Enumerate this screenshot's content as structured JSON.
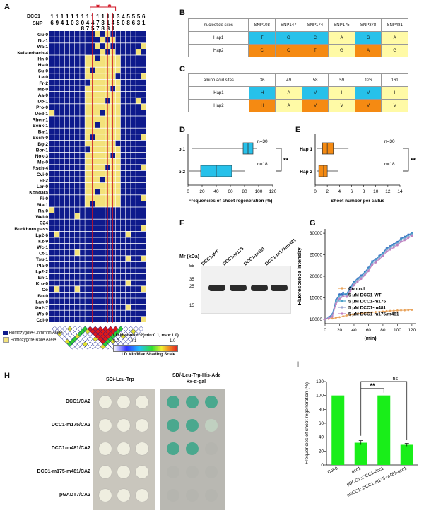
{
  "panels": {
    "A": "A",
    "B": "B",
    "C": "C",
    "D": "D",
    "E": "E",
    "F": "F",
    "G": "G",
    "H": "H",
    "I": "I"
  },
  "panelA": {
    "dcc1_label": "DCC1",
    "snp_label": "SNP",
    "snp_digits_row1": [
      "1",
      "1",
      "1",
      "1",
      "1",
      "1",
      "1",
      "1",
      "1",
      "1",
      "1",
      "1",
      "1",
      "3",
      "4",
      "5",
      "5",
      "5",
      "6"
    ],
    "snp_digits_row2": [
      "6",
      "9",
      "4",
      "1",
      "0",
      "3",
      "0",
      "4",
      "4",
      "7",
      "3",
      "1",
      "4",
      "5",
      "0",
      "8",
      "6",
      "3",
      "1"
    ],
    "snp_digits_row3": [
      "",
      "",
      "",
      "",
      "",
      "",
      "8",
      "7",
      "5",
      "7",
      "8",
      "8",
      "1",
      "",
      "",
      "",
      "",
      "",
      ""
    ],
    "accessions": [
      "Gu-0",
      "Nc-1",
      "Wa-1",
      "Kelsterbach-4",
      "Hn-0",
      "Hs-0",
      "Su-0",
      "Le-0",
      "Fr-2",
      "Mz-0",
      "Aa-0",
      "Db-1",
      "Pro-0",
      "Uod-1",
      "Rhen-1",
      "Benk-1",
      "Ba-1",
      "Bsch-0",
      "Bg-2",
      "Bor-1",
      "Nok-3",
      "Ms-0",
      "Rsch-4",
      "Cvi-0",
      "Ei-2",
      "Ler-0",
      "Kondara",
      "Fi-0",
      "Bla-1",
      "Ra-0",
      "Wei-0",
      "C24",
      "Buckhorn pass",
      "Lp2-6",
      "Kz-9",
      "Wc-1",
      "Ct-1",
      "Tsu-1",
      "Pla-0",
      "Lp2-2",
      "En-1",
      "Kro-0",
      "Co",
      "Bu-0",
      "Lan-0",
      "Pu2-7",
      "Ws-0",
      "Col-0"
    ],
    "legend_common": "Homozygote-Common Allele",
    "legend_rare": "Homozygote-Rare Allele",
    "ld_method": "LD Method:r^2(min:0.1, max:1.0)",
    "ld_scale_title": "LD Min/Max Shading Scale",
    "ld_ticks": [
      "0.0",
      "0.1",
      "1.0"
    ],
    "colors": {
      "common": "#0e1a8c",
      "rare": "#f3e27a",
      "grid": "#5060b0"
    }
  },
  "panelB": {
    "header": [
      "nucleotide sites",
      "SNP108",
      "SNP147",
      "SNP174",
      "SNP175",
      "SNP378",
      "SNP481"
    ],
    "rows": [
      {
        "name": "Hap1",
        "cells": [
          "T",
          "G",
          "C",
          "A",
          "G",
          "A"
        ]
      },
      {
        "name": "Hap2",
        "cells": [
          "C",
          "C",
          "T",
          "G",
          "A",
          "G"
        ]
      }
    ]
  },
  "panelC": {
    "header": [
      "amino acid sites",
      "36",
      "49",
      "58",
      "59",
      "126",
      "161"
    ],
    "rows": [
      {
        "name": "Hap1",
        "cells": [
          "H",
          "A",
          "V",
          "I",
          "V",
          "I"
        ]
      },
      {
        "name": "Hap2",
        "cells": [
          "H",
          "A",
          "V",
          "V",
          "V",
          "V"
        ]
      }
    ]
  },
  "panelD": {
    "xlabel": "Frequencies of shoot regeneration (%)",
    "ticks": [
      "0",
      "20",
      "40",
      "60",
      "80",
      "100",
      "120"
    ],
    "groups": [
      "Hap 1",
      "Hap 2"
    ],
    "n": [
      "n=30",
      "n=18"
    ],
    "sig": "**"
  },
  "panelE": {
    "xlabel": "Shoot number per callus",
    "ticks": [
      "0",
      "2",
      "4",
      "6",
      "8",
      "10",
      "12",
      "14"
    ],
    "groups": [
      "Hap 1",
      "Hap 2"
    ],
    "n": [
      "n=30",
      "n=18"
    ],
    "sig": "**"
  },
  "panelF": {
    "lanes": [
      "DCC1-WT",
      "DCC1-m175",
      "DCC1-m481",
      "DCC1-m175/m481"
    ],
    "mr_label": "Mr (kDa)",
    "markers": [
      "55",
      "35",
      "25",
      "15"
    ]
  },
  "panelG": {
    "ylabel": "Fluorescence intensity",
    "xlabel": "(min)",
    "yticks": [
      "10000",
      "15000",
      "20000",
      "25000",
      "30000"
    ],
    "xticks": [
      "0",
      "20",
      "40",
      "60",
      "80",
      "100",
      "120"
    ],
    "legend": [
      "Control",
      "5 μM DCC1-WT",
      "5 μM DCC1-m175",
      "5 μM DCC1-m481",
      "5 μM DCC1-m175/m481"
    ]
  },
  "panelH": {
    "col1": "SD/-Leu-Trp",
    "col2_line1": "SD/-Leu-Trp-His-Ade",
    "col2_line2": "+x-α-gal",
    "rows": [
      "DCC1/CA2",
      "DCC1-m175/CA2",
      "DCC1-m481/CA2",
      "DCC1-m175-m481/CA2",
      "pGADT7/CA2"
    ]
  },
  "chart_data": [
    {
      "type": "line",
      "x": [
        0,
        5,
        10,
        15,
        20,
        25,
        30,
        35,
        40,
        45,
        50,
        55,
        60,
        65,
        70,
        75,
        80,
        85,
        90,
        95,
        100,
        105,
        110,
        115,
        120
      ],
      "series": [
        {
          "name": "Control",
          "values": [
            10000,
            10100,
            10200,
            10350,
            10500,
            10700,
            10900,
            11000,
            11150,
            11300,
            11400,
            11500,
            11600,
            11650,
            11700,
            11750,
            11800,
            11900,
            11950,
            12000,
            12050,
            12100,
            12100,
            12150,
            12200
          ]
        },
        {
          "name": "5 μM DCC1-WT",
          "values": [
            10000,
            10500,
            11200,
            14500,
            15800,
            16200,
            16000,
            17500,
            18800,
            19500,
            20200,
            21000,
            22000,
            23500,
            24000,
            24800,
            25500,
            26500,
            27000,
            27500,
            28000,
            28800,
            29200,
            29700,
            30000
          ]
        },
        {
          "name": "5 μM DCC1-m175",
          "values": [
            10000,
            10400,
            11000,
            14200,
            15500,
            16000,
            15800,
            17200,
            18500,
            19200,
            20000,
            20800,
            21800,
            23200,
            23800,
            24600,
            25300,
            26300,
            26800,
            27300,
            27800,
            28600,
            29000,
            29500,
            29900
          ]
        },
        {
          "name": "5 μM DCC1-m481",
          "values": [
            10000,
            10300,
            10800,
            13800,
            15000,
            15600,
            15500,
            16900,
            18200,
            19000,
            19700,
            20500,
            21500,
            22900,
            23500,
            24300,
            25000,
            26000,
            26500,
            27000,
            27500,
            28300,
            28700,
            29200,
            29600
          ]
        },
        {
          "name": "5 μM DCC1-m175/m481",
          "values": [
            10000,
            10200,
            10600,
            13500,
            14700,
            15300,
            15200,
            16600,
            17900,
            18700,
            19400,
            20200,
            21200,
            22600,
            23200,
            24000,
            24700,
            25700,
            26200,
            26700,
            27200,
            28000,
            28400,
            28900,
            29300
          ]
        }
      ],
      "ylabel": "Fluorescence intensity",
      "xlabel": "(min)",
      "ylim": [
        9000,
        31000
      ],
      "xlim": [
        0,
        125
      ],
      "colors": [
        "#e8a25a",
        "#3a6fc4",
        "#4aa0c8",
        "#9aa4d0",
        "#c080c0"
      ],
      "legend_position": "bottom-right"
    },
    {
      "type": "bar",
      "categories": [
        "Col-0",
        "dcc1",
        "pDCC1::DCC1-dcc1",
        "pDCC1::DCC1-m175-m481-dcc1"
      ],
      "values": [
        100,
        32,
        100,
        29
      ],
      "errors": [
        0,
        3,
        0,
        2
      ],
      "ylabel": "Frequencies of shoot regeneration (%)",
      "ylim": [
        0,
        120
      ],
      "yticks": [
        "0",
        "20",
        "40",
        "60",
        "80",
        "100",
        "120"
      ],
      "annotations": [
        "**",
        "ns"
      ],
      "color": "#19ee19"
    }
  ]
}
